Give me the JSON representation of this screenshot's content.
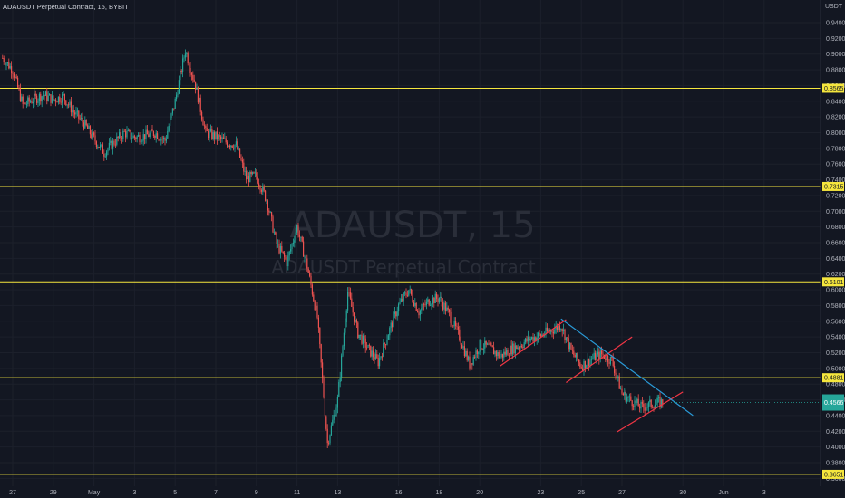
{
  "header": {
    "symbol_line": "ADAUSDT Perpetual Contract, 15, BYBIT",
    "currency": "USDT"
  },
  "watermark": {
    "title": "ADAUSDT, 15",
    "subtitle": "ADAUSDT Perpetual Contract"
  },
  "colors": {
    "background": "#131722",
    "up": "#26a69a",
    "down": "#ef5350",
    "level_line": "#f5e63d",
    "support_line": "#f23645",
    "trend_line": "#2a9bd8",
    "last_price_bg": "#26a69a"
  },
  "chart_data": {
    "type": "candlestick",
    "timeframe": "15",
    "exchange": "BYBIT",
    "ylim": [
      0.36,
      0.96
    ],
    "y_ticks": [
      "0.9400",
      "0.9200",
      "0.9000",
      "0.8800",
      "0.8600",
      "0.8400",
      "0.8200",
      "0.8000",
      "0.7800",
      "0.7600",
      "0.7400",
      "0.7200",
      "0.7000",
      "0.6800",
      "0.6600",
      "0.6400",
      "0.6200",
      "0.6000",
      "0.5800",
      "0.5600",
      "0.5400",
      "0.5200",
      "0.5000",
      "0.4800",
      "0.4600",
      "0.4400",
      "0.4200",
      "0.4000",
      "0.3800",
      "0.3600"
    ],
    "x_ticks": [
      "27",
      "29",
      "May",
      "3",
      "5",
      "7",
      "9",
      "11",
      "13",
      "16",
      "18",
      "20",
      "23",
      "25",
      "27",
      "30",
      "Jun",
      "3"
    ],
    "horizontal_levels": [
      "0.8565",
      "0.7315",
      "0.6101",
      "0.4881",
      "0.3651"
    ],
    "last_price": "0.4566",
    "price_path": [
      [
        "Apr 26 12:00",
        0.895
      ],
      [
        "Apr 27 00:00",
        0.88
      ],
      [
        "Apr 27 12:00",
        0.835
      ],
      [
        "Apr 28 00:00",
        0.842
      ],
      [
        "Apr 28 12:00",
        0.848
      ],
      [
        "Apr 29 00:00",
        0.842
      ],
      [
        "Apr 29 12:00",
        0.846
      ],
      [
        "Apr 30 00:00",
        0.826
      ],
      [
        "Apr 30 12:00",
        0.812
      ],
      [
        "May 01 00:00",
        0.792
      ],
      [
        "May 01 12:00",
        0.775
      ],
      [
        "May 02 00:00",
        0.788
      ],
      [
        "May 02 12:00",
        0.8
      ],
      [
        "May 03 00:00",
        0.794
      ],
      [
        "May 03 12:00",
        0.796
      ],
      [
        "May 04 00:00",
        0.8
      ],
      [
        "May 04 12:00",
        0.79
      ],
      [
        "May 05 00:00",
        0.84
      ],
      [
        "May 05 12:00",
        0.905
      ],
      [
        "May 06 00:00",
        0.86
      ],
      [
        "May 06 12:00",
        0.8
      ],
      [
        "May 07 00:00",
        0.795
      ],
      [
        "May 07 12:00",
        0.788
      ],
      [
        "May 08 00:00",
        0.784
      ],
      [
        "May 08 12:00",
        0.742
      ],
      [
        "May 09 00:00",
        0.745
      ],
      [
        "May 09 12:00",
        0.715
      ],
      [
        "May 10 00:00",
        0.658
      ],
      [
        "May 10 12:00",
        0.635
      ],
      [
        "May 11 00:00",
        0.68
      ],
      [
        "May 11 12:00",
        0.63
      ],
      [
        "May 12 00:00",
        0.565
      ],
      [
        "May 12 12:00",
        0.405
      ],
      [
        "May 13 00:00",
        0.46
      ],
      [
        "May 13 12:00",
        0.598
      ],
      [
        "May 14 00:00",
        0.545
      ],
      [
        "May 14 12:00",
        0.525
      ],
      [
        "May 15 00:00",
        0.508
      ],
      [
        "May 15 12:00",
        0.545
      ],
      [
        "May 16 00:00",
        0.58
      ],
      [
        "May 16 12:00",
        0.6
      ],
      [
        "May 17 00:00",
        0.572
      ],
      [
        "May 17 12:00",
        0.586
      ],
      [
        "May 18 00:00",
        0.59
      ],
      [
        "May 18 12:00",
        0.568
      ],
      [
        "May 19 00:00",
        0.54
      ],
      [
        "May 19 12:00",
        0.505
      ],
      [
        "May 20 00:00",
        0.53
      ],
      [
        "May 20 12:00",
        0.526
      ],
      [
        "May 21 00:00",
        0.515
      ],
      [
        "May 21 12:00",
        0.524
      ],
      [
        "May 22 00:00",
        0.53
      ],
      [
        "May 22 12:00",
        0.538
      ],
      [
        "May 23 00:00",
        0.542
      ],
      [
        "May 23 12:00",
        0.548
      ],
      [
        "May 24 00:00",
        0.555
      ],
      [
        "May 24 12:00",
        0.522
      ],
      [
        "May 25 00:00",
        0.503
      ],
      [
        "May 25 12:00",
        0.512
      ],
      [
        "May 26 00:00",
        0.518
      ],
      [
        "May 26 12:00",
        0.51
      ],
      [
        "May 27 00:00",
        0.468
      ],
      [
        "May 27 12:00",
        0.458
      ],
      [
        "May 28 00:00",
        0.45
      ],
      [
        "May 28 12:00",
        0.455
      ],
      [
        "May 29 00:00",
        0.457
      ]
    ],
    "drawings": [
      {
        "kind": "upper_channel_1",
        "from": [
          "May 21 00:00",
          0.503
        ],
        "to": [
          "May 24 06:00",
          0.562
        ]
      },
      {
        "kind": "upper_channel_2",
        "from": [
          "May 24 06:00",
          0.482
        ],
        "to": [
          "May 27 12:00",
          0.54
        ]
      },
      {
        "kind": "lower_channel_3",
        "from": [
          "May 26 18:00",
          0.419
        ],
        "to": [
          "May 30 00:00",
          0.47
        ]
      },
      {
        "kind": "descending_trend",
        "from": [
          "May 24 00:00",
          0.563
        ],
        "to": [
          "May 30 12:00",
          0.44
        ]
      }
    ]
  }
}
